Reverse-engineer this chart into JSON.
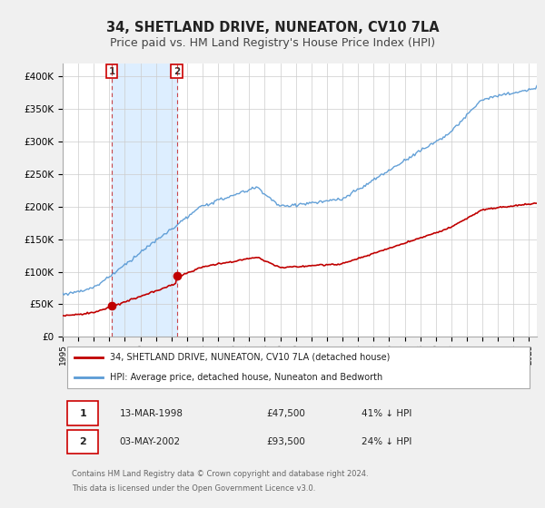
{
  "title": "34, SHETLAND DRIVE, NUNEATON, CV10 7LA",
  "subtitle": "Price paid vs. HM Land Registry's House Price Index (HPI)",
  "ylim": [
    0,
    420000
  ],
  "yticks": [
    0,
    50000,
    100000,
    150000,
    200000,
    250000,
    300000,
    350000,
    400000
  ],
  "ytick_labels": [
    "£0",
    "£50K",
    "£100K",
    "£150K",
    "£200K",
    "£250K",
    "£300K",
    "£350K",
    "£400K"
  ],
  "sale1_year": 1998.167,
  "sale1_price": 47500,
  "sale2_year": 2002.333,
  "sale2_price": 93500,
  "hpi_color": "#5b9bd5",
  "price_color": "#c00000",
  "background_color": "#f0f0f0",
  "plot_bg_color": "#ffffff",
  "shade_color": "#ddeeff",
  "legend_label_red": "34, SHETLAND DRIVE, NUNEATON, CV10 7LA (detached house)",
  "legend_label_blue": "HPI: Average price, detached house, Nuneaton and Bedworth",
  "table_row1": [
    "1",
    "13-MAR-1998",
    "£47,500",
    "41% ↓ HPI"
  ],
  "table_row2": [
    "2",
    "03-MAY-2002",
    "£93,500",
    "24% ↓ HPI"
  ],
  "footnote1": "Contains HM Land Registry data © Crown copyright and database right 2024.",
  "footnote2": "This data is licensed under the Open Government Licence v3.0.",
  "title_fontsize": 10.5,
  "subtitle_fontsize": 9
}
